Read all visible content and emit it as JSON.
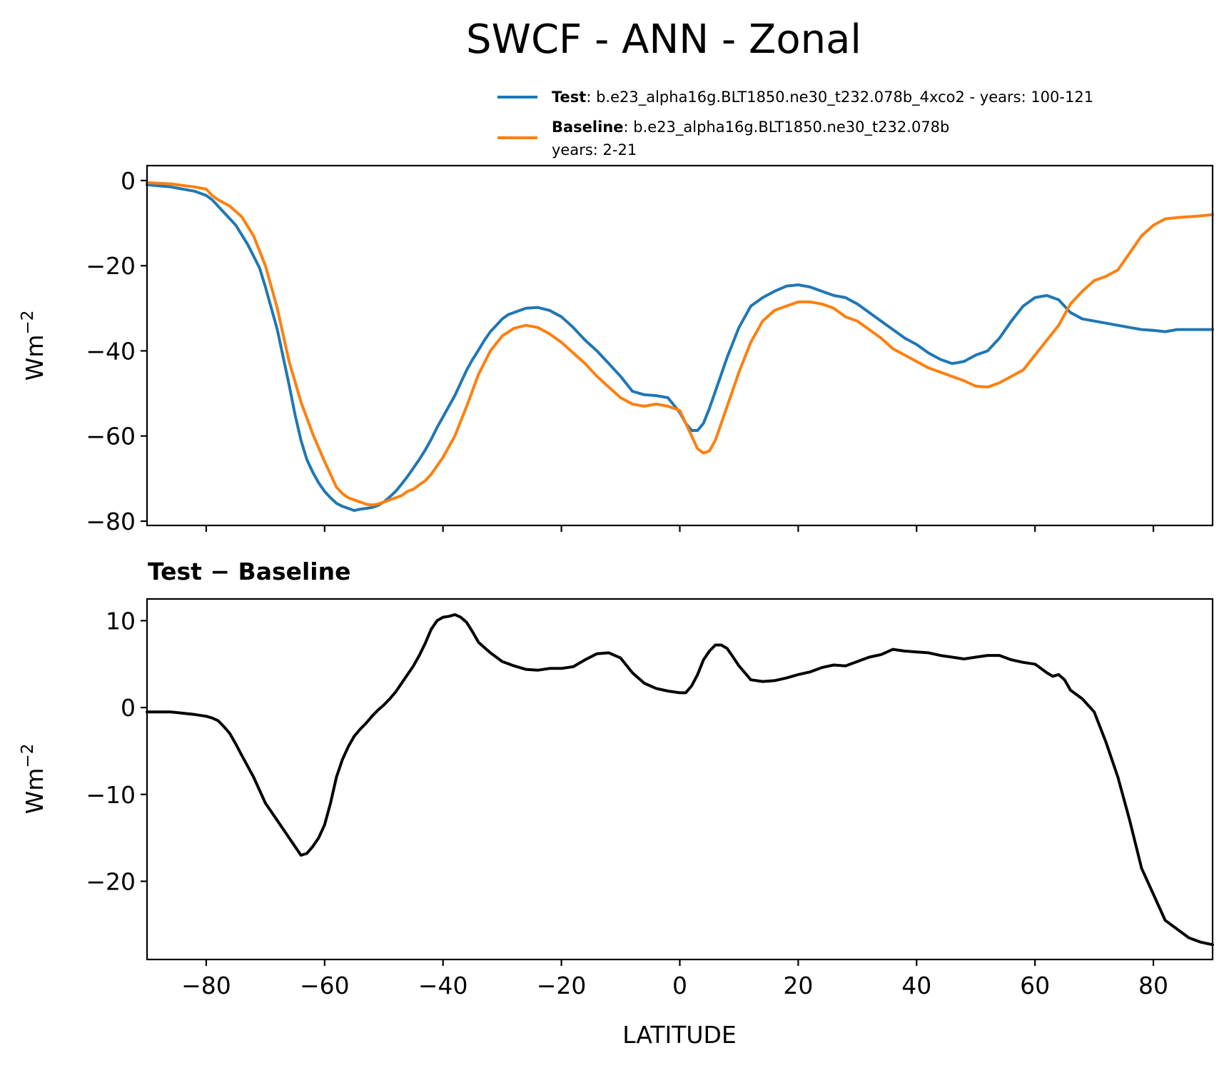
{
  "figure_title": "SWCF - ANN - Zonal",
  "chart_data": [
    {
      "type": "line",
      "panel": "top",
      "title": "",
      "xlabel": "",
      "ylabel": "Wm",
      "ylabel_sup": "−2",
      "xlim": [
        -90,
        90
      ],
      "ylim": [
        -81,
        3.5
      ],
      "xticks": [
        -80,
        -60,
        -40,
        -20,
        0,
        20,
        40,
        60,
        80
      ],
      "yticks": [
        0,
        -20,
        -40,
        -60,
        -80
      ],
      "ytick_labels": [
        "0",
        "−20",
        "−40",
        "−60",
        "−80"
      ],
      "legend": {
        "position": "above-right",
        "entries": [
          {
            "bold": "Test",
            "text": ": b.e23_alpha16g.BLT1850.ne30_t232.078b_4xco2 - years: 100-121",
            "text2": ""
          },
          {
            "bold": "Baseline",
            "text": ": b.e23_alpha16g.BLT1850.ne30_t232.078b",
            "text2": "years: 2-21"
          }
        ]
      },
      "series": [
        {
          "name": "Test",
          "color": "#1f77b4",
          "x": [
            -90,
            -86,
            -82,
            -80,
            -79,
            -78,
            -77,
            -75,
            -73,
            -71,
            -70,
            -69,
            -68,
            -67,
            -66,
            -65,
            -64,
            -63,
            -62,
            -61,
            -60,
            -59,
            -58,
            -57,
            -56,
            -55,
            -54,
            -53,
            -52,
            -51,
            -50,
            -49,
            -48,
            -47,
            -46,
            -45,
            -44,
            -43,
            -42,
            -41,
            -40,
            -39,
            -38,
            -37,
            -36,
            -35,
            -34,
            -33,
            -32,
            -31,
            -30,
            -29,
            -28,
            -26,
            -24,
            -22,
            -20,
            -18,
            -16,
            -14,
            -12,
            -10,
            -8,
            -6,
            -4,
            -2,
            0,
            1,
            2,
            3,
            4,
            5,
            6,
            7,
            8,
            10,
            12,
            14,
            16,
            18,
            20,
            22,
            24,
            26,
            28,
            30,
            32,
            34,
            36,
            38,
            40,
            42,
            44,
            46,
            48,
            50,
            52,
            54,
            56,
            58,
            60,
            62,
            64,
            66,
            68,
            70,
            72,
            74,
            76,
            78,
            80,
            82,
            84,
            86,
            88,
            90
          ],
          "values": [
            -1,
            -1.5,
            -2.5,
            -3.5,
            -4.5,
            -6,
            -7.5,
            -10.5,
            -15,
            -20.5,
            -25,
            -30,
            -35,
            -41.5,
            -48,
            -55,
            -61,
            -65.5,
            -68.5,
            -71,
            -73,
            -74.5,
            -75.8,
            -76.5,
            -77,
            -77.5,
            -77.2,
            -77,
            -76.8,
            -76.3,
            -75.5,
            -74.3,
            -73,
            -71.3,
            -69.5,
            -67.5,
            -65.5,
            -63.3,
            -60.8,
            -58,
            -55.5,
            -53,
            -50.5,
            -47.5,
            -44.5,
            -42,
            -39.8,
            -37.5,
            -35.5,
            -34,
            -32.5,
            -31.5,
            -31,
            -30,
            -29.8,
            -30.5,
            -32,
            -34.5,
            -37.5,
            -40,
            -43,
            -46,
            -49.5,
            -50.3,
            -50.5,
            -51,
            -54.5,
            -57,
            -58.7,
            -58.7,
            -57,
            -53.5,
            -49.5,
            -45.5,
            -41.5,
            -34.5,
            -29.5,
            -27.5,
            -26,
            -24.8,
            -24.5,
            -25,
            -26,
            -27,
            -27.5,
            -29,
            -31,
            -33,
            -35,
            -37,
            -38.5,
            -40.5,
            -42,
            -43,
            -42.5,
            -41,
            -40,
            -37,
            -33,
            -29.5,
            -27.5,
            -27,
            -28,
            -31,
            -32.5,
            -33,
            -33.5,
            -34,
            -34.5,
            -35,
            -35.2,
            -35.5,
            -35,
            -35,
            -35,
            -35
          ]
        },
        {
          "name": "Baseline",
          "color": "#ff7f0e",
          "x": [
            -90,
            -86,
            -82,
            -80,
            -79,
            -78,
            -76,
            -74,
            -72,
            -70,
            -68,
            -66,
            -64,
            -62,
            -60,
            -58,
            -57,
            -56,
            -55,
            -54,
            -53,
            -52,
            -51,
            -50,
            -49,
            -48,
            -47,
            -46,
            -45,
            -44,
            -43,
            -42,
            -41,
            -40,
            -38,
            -36,
            -34,
            -32,
            -30,
            -28,
            -26,
            -24,
            -22,
            -20,
            -18,
            -16,
            -14,
            -12,
            -10,
            -8,
            -6,
            -4,
            -2,
            0,
            1,
            2,
            3,
            4,
            5,
            6,
            7,
            8,
            9,
            10,
            12,
            14,
            16,
            18,
            20,
            22,
            24,
            26,
            28,
            30,
            32,
            34,
            36,
            38,
            40,
            42,
            44,
            46,
            48,
            50,
            52,
            54,
            56,
            58,
            60,
            62,
            64,
            66,
            68,
            70,
            72,
            74,
            76,
            78,
            80,
            82,
            84,
            86,
            88,
            90
          ],
          "values": [
            -0.5,
            -0.8,
            -1.5,
            -2,
            -3.5,
            -4.5,
            -6,
            -8.5,
            -13,
            -20,
            -30,
            -42.5,
            -52,
            -59.5,
            -66,
            -72,
            -73.5,
            -74.5,
            -75,
            -75.5,
            -76,
            -76.2,
            -76,
            -75.5,
            -75,
            -74.5,
            -74,
            -73,
            -72.5,
            -71.5,
            -70.5,
            -69,
            -67,
            -65,
            -60,
            -53,
            -45.5,
            -40,
            -36.5,
            -34.7,
            -34,
            -34.5,
            -36,
            -38,
            -40.5,
            -43,
            -46,
            -48.5,
            -51,
            -52.5,
            -53,
            -52.5,
            -53,
            -54,
            -57,
            -60,
            -63,
            -64,
            -63.5,
            -61,
            -57,
            -53,
            -49,
            -45,
            -38,
            -33,
            -30.5,
            -29.5,
            -28.5,
            -28.5,
            -29,
            -30,
            -32,
            -33,
            -35,
            -37,
            -39.5,
            -41,
            -42.5,
            -44,
            -45,
            -46,
            -47,
            -48.3,
            -48.5,
            -47.5,
            -46,
            -44.5,
            -41,
            -37.5,
            -34,
            -29,
            -26,
            -23.5,
            -22.5,
            -21,
            -17,
            -13,
            -10.5,
            -9,
            -8.7,
            -8.5,
            -8.3,
            -8
          ]
        }
      ]
    },
    {
      "type": "line",
      "panel": "bottom",
      "title": "Test − Baseline",
      "xlabel": "LATITUDE",
      "ylabel": "Wm",
      "ylabel_sup": "−2",
      "xlim": [
        -90,
        90
      ],
      "ylim": [
        -29,
        12.5
      ],
      "xticks": [
        -80,
        -60,
        -40,
        -20,
        0,
        20,
        40,
        60,
        80
      ],
      "xtick_labels": [
        "−80",
        "−60",
        "−40",
        "−20",
        "0",
        "20",
        "40",
        "60",
        "80"
      ],
      "yticks": [
        10,
        0,
        -10,
        -20
      ],
      "ytick_labels": [
        "10",
        "0",
        "−10",
        "−20"
      ],
      "series": [
        {
          "name": "Test − Baseline",
          "color": "#000000",
          "x": [
            -90,
            -86,
            -82,
            -80,
            -79,
            -78,
            -77,
            -76,
            -75,
            -74,
            -72,
            -70,
            -69,
            -68,
            -66,
            -64,
            -63,
            -62,
            -61,
            -60,
            -59,
            -58,
            -57,
            -56,
            -55,
            -54,
            -53,
            -52,
            -51,
            -50,
            -49,
            -48,
            -47,
            -46,
            -45,
            -44,
            -43,
            -42,
            -41,
            -40,
            -39,
            -38,
            -37,
            -36,
            -35,
            -34,
            -33,
            -32,
            -30,
            -28,
            -26,
            -24,
            -22,
            -20,
            -18,
            -16,
            -14,
            -12,
            -10,
            -8,
            -6,
            -4,
            -2,
            0,
            1,
            2,
            3,
            4,
            5,
            6,
            7,
            8,
            9,
            10,
            12,
            14,
            16,
            18,
            20,
            22,
            24,
            26,
            28,
            30,
            32,
            34,
            36,
            38,
            40,
            42,
            44,
            46,
            48,
            50,
            52,
            54,
            56,
            58,
            60,
            61,
            62,
            63,
            64,
            65,
            66,
            68,
            70,
            72,
            74,
            76,
            78,
            80,
            82,
            84,
            86,
            88,
            90
          ],
          "values": [
            -0.5,
            -0.5,
            -0.8,
            -1,
            -1.2,
            -1.5,
            -2.2,
            -3,
            -4.2,
            -5.5,
            -8,
            -11,
            -12,
            -13,
            -15,
            -17,
            -16.8,
            -16,
            -15,
            -13.5,
            -11,
            -8,
            -6,
            -4.5,
            -3.3,
            -2.5,
            -1.8,
            -1,
            -0.3,
            0.3,
            1,
            1.8,
            2.8,
            3.8,
            4.8,
            6,
            7.4,
            9,
            10,
            10.4,
            10.5,
            10.7,
            10.4,
            9.8,
            8.7,
            7.5,
            6.9,
            6.3,
            5.3,
            4.8,
            4.4,
            4.3,
            4.5,
            4.5,
            4.7,
            5.5,
            6.2,
            6.3,
            5.7,
            4,
            2.8,
            2.2,
            1.9,
            1.7,
            1.7,
            2.5,
            3.8,
            5.5,
            6.5,
            7.2,
            7.2,
            6.8,
            5.8,
            4.8,
            3.2,
            3,
            3.1,
            3.4,
            3.8,
            4.1,
            4.6,
            4.9,
            4.8,
            5.3,
            5.8,
            6.1,
            6.7,
            6.5,
            6.4,
            6.3,
            6,
            5.8,
            5.6,
            5.8,
            6,
            6,
            5.5,
            5.2,
            5,
            4.5,
            4,
            3.6,
            3.8,
            3.2,
            2,
            1,
            -0.5,
            -4,
            -8,
            -13,
            -18.5,
            -21.5,
            -24.5,
            -25.5,
            -26.5,
            -27,
            -27.3
          ]
        }
      ]
    }
  ]
}
